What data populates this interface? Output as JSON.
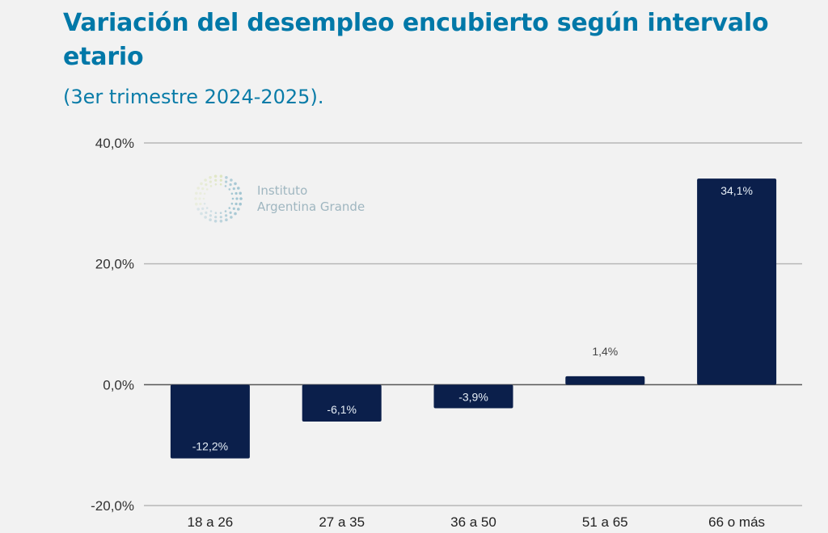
{
  "header": {
    "title": "Variación del desempleo encubierto según intervalo etario",
    "subtitle": "(3er trimestre 2024-2025)."
  },
  "logo": {
    "icon": "dotted-circle-logo-icon",
    "line1": "Instituto",
    "line2": "Argentina Grande"
  },
  "colors": {
    "title": "#0078a8",
    "bar": "#0b1f4b",
    "grid": "#b8b8b8",
    "zero_line": "#555555"
  },
  "chart_data": {
    "type": "bar",
    "title": "Variación del desempleo encubierto según intervalo etario",
    "subtitle": "(3er trimestre 2024-2025).",
    "xlabel": "",
    "ylabel": "",
    "categories": [
      "18 a 26",
      "27 a 35",
      "36 a 50",
      "51 a 65",
      "66 o más"
    ],
    "values": [
      -12.2,
      -6.1,
      -3.9,
      1.4,
      34.1
    ],
    "value_labels": [
      "-12,2%",
      "-6,1%",
      "-3,9%",
      "1,4%",
      "34,1%"
    ],
    "ylim": [
      -20,
      40
    ],
    "yticks": [
      40,
      20,
      0,
      -20
    ],
    "ytick_labels": [
      "40,0%",
      "20,0%",
      "0,0%",
      "-20,0%"
    ],
    "grid": true,
    "legend": "none"
  }
}
